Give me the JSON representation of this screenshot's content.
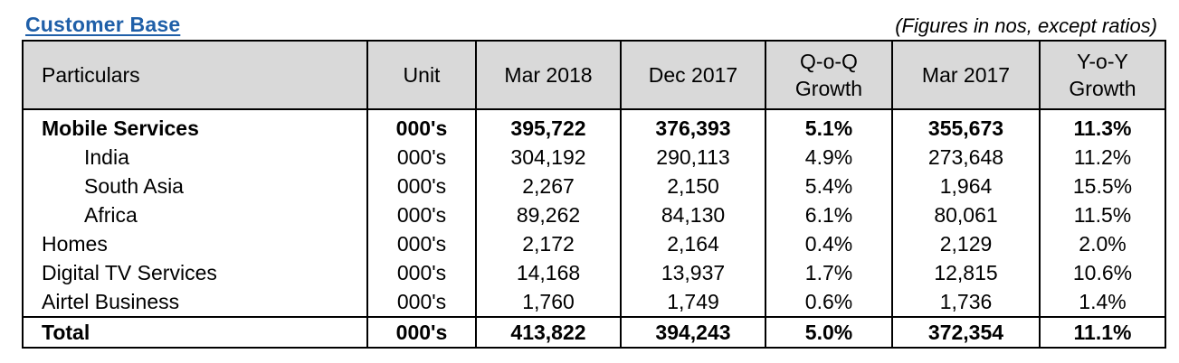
{
  "title": "Customer Base",
  "note": "(Figures in nos, except ratios)",
  "table": {
    "headers": [
      [
        "Particulars"
      ],
      [
        "Unit"
      ],
      [
        "Mar 2018"
      ],
      [
        "Dec 2017"
      ],
      [
        "Q-o-Q",
        "Growth"
      ],
      [
        "Mar 2017"
      ],
      [
        "Y-o-Y",
        "Growth"
      ]
    ],
    "rows": [
      {
        "label": "Mobile Services",
        "unit": "000's",
        "mar_2018": "395,722",
        "dec_2017": "376,393",
        "qoq": "5.1%",
        "mar_2017": "355,673",
        "yoy": "11.3%"
      },
      {
        "label": "India",
        "unit": "000's",
        "mar_2018": "304,192",
        "dec_2017": "290,113",
        "qoq": "4.9%",
        "mar_2017": "273,648",
        "yoy": "11.2%"
      },
      {
        "label": "South Asia",
        "unit": "000's",
        "mar_2018": "2,267",
        "dec_2017": "2,150",
        "qoq": "5.4%",
        "mar_2017": "1,964",
        "yoy": "15.5%"
      },
      {
        "label": "Africa",
        "unit": "000's",
        "mar_2018": "89,262",
        "dec_2017": "84,130",
        "qoq": "6.1%",
        "mar_2017": "80,061",
        "yoy": "11.5%"
      },
      {
        "label": "Homes",
        "unit": "000's",
        "mar_2018": "2,172",
        "dec_2017": "2,164",
        "qoq": "0.4%",
        "mar_2017": "2,129",
        "yoy": "2.0%"
      },
      {
        "label": "Digital TV Services",
        "unit": "000's",
        "mar_2018": "14,168",
        "dec_2017": "13,937",
        "qoq": "1.7%",
        "mar_2017": "12,815",
        "yoy": "10.6%"
      },
      {
        "label": "Airtel Business",
        "unit": "000's",
        "mar_2018": "1,760",
        "dec_2017": "1,749",
        "qoq": "0.6%",
        "mar_2017": "1,736",
        "yoy": "1.4%"
      },
      {
        "label": "Total",
        "unit": "000's",
        "mar_2018": "413,822",
        "dec_2017": "394,243",
        "qoq": "5.0%",
        "mar_2017": "372,354",
        "yoy": "11.1%"
      }
    ]
  },
  "colors": {
    "title": "#1f5fa8",
    "header_bg": "#d9d9d9"
  }
}
